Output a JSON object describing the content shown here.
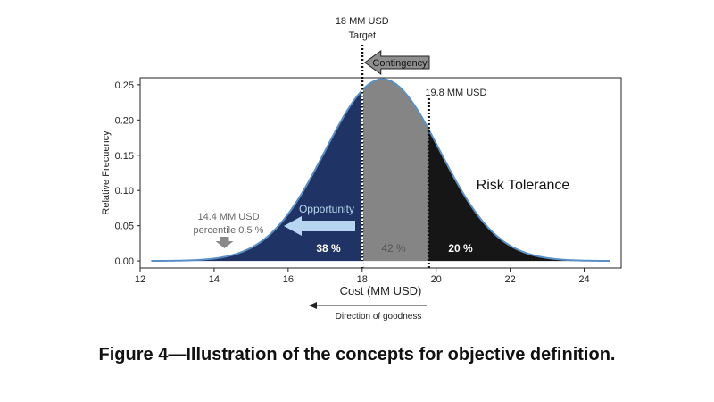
{
  "chart_data": {
    "type": "area",
    "distribution": "normal",
    "x": [
      12.3,
      13,
      13.5,
      14,
      14.4,
      15,
      15.5,
      16,
      16.5,
      17,
      17.5,
      18,
      18.5,
      19,
      19.5,
      19.8,
      20,
      20.5,
      21,
      21.5,
      22,
      22.5,
      23,
      23.5,
      24,
      24.7
    ],
    "y": [
      0.0001,
      0.0008,
      0.0025,
      0.0067,
      0.0134,
      0.0319,
      0.0594,
      0.0992,
      0.1483,
      0.1989,
      0.2392,
      0.258,
      0.2497,
      0.2167,
      0.1687,
      0.1399,
      0.1178,
      0.0738,
      0.0415,
      0.0209,
      0.0094,
      0.0038,
      0.0014,
      0.0004,
      0.0001,
      0.0
    ],
    "xlabel": "Cost (MM USD)",
    "ylabel": "Relative Frecuency",
    "xlim": [
      12,
      25
    ],
    "ylim": [
      -0.01,
      0.26
    ],
    "xticks": [
      "12",
      "14",
      "16",
      "18",
      "20",
      "22",
      "24"
    ],
    "yticks": [
      "0.00",
      "0.05",
      "0.10",
      "0.15",
      "0.20",
      "0.25"
    ],
    "regions": [
      {
        "from": 12.3,
        "to": 18.0,
        "color": "#1f3465",
        "label": "38 %",
        "label_color": "#ffffff"
      },
      {
        "from": 18.0,
        "to": 19.8,
        "color": "#858585",
        "label": "42 %",
        "label_color": "#555555"
      },
      {
        "from": 19.8,
        "to": 24.7,
        "color": "#161616",
        "label": "20 %",
        "label_color": "#ffffff"
      }
    ],
    "lines": [
      {
        "x": 18.0,
        "label_top": "18 MM USD",
        "label_bottom": "Target",
        "color": "#ffffff"
      },
      {
        "x": 19.8,
        "label": "19.8 MM USD",
        "color": "#111111"
      }
    ],
    "annotations": {
      "contingency": "Contingency",
      "opportunity": "Opportunity",
      "risk_tolerance": "Risk Tolerance",
      "p05_value": "14.4 MM USD",
      "p05_label": "percentile 0.5 %",
      "p05_x": 14.4,
      "direction": "Direction of goodness"
    },
    "outline_color": "#5b8fc7"
  },
  "caption": "Figure 4—Illustration of the concepts for objective definition."
}
